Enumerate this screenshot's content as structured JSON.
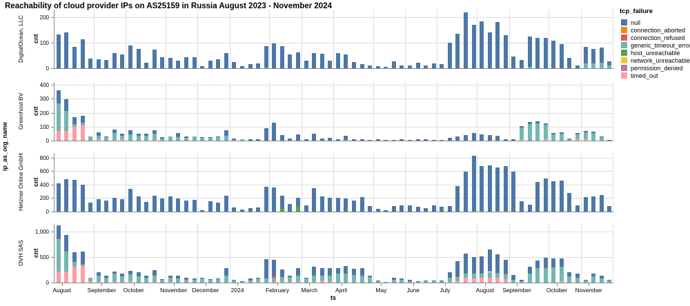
{
  "title": "Reachability of cloud provider IPs on AS25159 in Russia August 2023 - November 2024",
  "legend": {
    "title": "tcp_failure",
    "items": [
      {
        "label": "null",
        "color": "#4c78a8"
      },
      {
        "label": "connection_aborted",
        "color": "#f58518"
      },
      {
        "label": "connection_refused",
        "color": "#e45756"
      },
      {
        "label": "generic_timeout_error",
        "color": "#72b7b2"
      },
      {
        "label": "host_unreachable",
        "color": "#54a24b"
      },
      {
        "label": "network_unreachable",
        "color": "#eeca3b"
      },
      {
        "label": "permission_denied",
        "color": "#b279a2"
      },
      {
        "label": "timed_out",
        "color": "#ff9da6"
      }
    ]
  },
  "chart_data": {
    "type": "bar",
    "stacked": true,
    "grid": true,
    "time_unit": "week",
    "title": "Reachability of cloud provider IPs on AS25159 in Russia August 2023 - November 2024",
    "xlabel": "ts",
    "ylabel": "cnt",
    "row_title": "ip_as_org_name",
    "legend_position": "right",
    "x_tick_labels": [
      "August",
      "September",
      "October",
      "November",
      "December",
      "2024",
      "February",
      "March",
      "April",
      "May",
      "June",
      "July",
      "August",
      "September",
      "October",
      "November"
    ],
    "bars_per_month": [
      5,
      4,
      5,
      4,
      4,
      5,
      4,
      4,
      5,
      4,
      4,
      5,
      4,
      5,
      4,
      4
    ],
    "stack_order": [
      "timed_out",
      "permission_denied",
      "network_unreachable",
      "host_unreachable",
      "generic_timeout_error",
      "connection_refused",
      "connection_aborted",
      "null"
    ],
    "facets": [
      {
        "name": "DigitalOcean, LLC",
        "ymax": 230,
        "yticks": [
          0,
          100,
          200
        ],
        "series": {
          "null": [
            133,
            142,
            83,
            115,
            38,
            36,
            33,
            60,
            55,
            88,
            75,
            22,
            74,
            42,
            40,
            31,
            43,
            43,
            7,
            31,
            36,
            59,
            25,
            9,
            16,
            20,
            82,
            97,
            86,
            53,
            63,
            29,
            60,
            58,
            30,
            60,
            54,
            25,
            15,
            12,
            8,
            5,
            28,
            12,
            10,
            22,
            12,
            20,
            15,
            100,
            135,
            218,
            170,
            185,
            140,
            180,
            130,
            45,
            32,
            119,
            120,
            118,
            108,
            95,
            40,
            12,
            65,
            57,
            58,
            18
          ],
          "generic_timeout_error": [
            0,
            0,
            0,
            0,
            0,
            0,
            0,
            0,
            0,
            0,
            0,
            0,
            0,
            0,
            0,
            0,
            0,
            0,
            0,
            0,
            0,
            0,
            0,
            0,
            0,
            0,
            4,
            0,
            0,
            0,
            0,
            0,
            0,
            0,
            0,
            0,
            0,
            0,
            0,
            0,
            0,
            0,
            0,
            0,
            0,
            0,
            0,
            0,
            0,
            0,
            0,
            0,
            0,
            0,
            0,
            0,
            0,
            0,
            0,
            6,
            0,
            0,
            0,
            0,
            0,
            0,
            20,
            18,
            22,
            10
          ]
        }
      },
      {
        "name": "Greenhost BV",
        "ymax": 420,
        "yticks": [
          0,
          100,
          200,
          300,
          400
        ],
        "series": {
          "null": [
            95,
            80,
            50,
            50,
            0,
            25,
            2,
            25,
            15,
            30,
            15,
            18,
            25,
            10,
            0,
            25,
            8,
            0,
            3,
            5,
            5,
            37,
            12,
            0,
            8,
            12,
            90,
            130,
            40,
            15,
            45,
            10,
            48,
            15,
            20,
            10,
            30,
            10,
            8,
            5,
            8,
            5,
            5,
            8,
            5,
            8,
            10,
            5,
            5,
            20,
            30,
            42,
            55,
            45,
            40,
            35,
            12,
            10,
            13,
            15,
            15,
            12,
            10,
            10,
            5,
            8,
            10,
            8,
            5,
            2
          ],
          "generic_timeout_error": [
            195,
            145,
            20,
            20,
            30,
            25,
            28,
            48,
            23,
            45,
            35,
            34,
            44,
            15,
            30,
            25,
            20,
            28,
            22,
            20,
            25,
            35,
            3,
            8,
            0,
            0,
            0,
            0,
            0,
            0,
            0,
            0,
            0,
            0,
            0,
            2,
            5,
            0,
            0,
            0,
            0,
            0,
            0,
            0,
            0,
            0,
            0,
            0,
            0,
            0,
            0,
            0,
            0,
            0,
            0,
            0,
            0,
            2,
            90,
            118,
            122,
            105,
            45,
            48,
            10,
            37,
            48,
            55,
            25,
            3
          ],
          "timed_out": [
            70,
            70,
            100,
            110,
            0,
            8,
            0,
            5,
            10,
            0,
            0,
            0,
            5,
            0,
            0,
            0,
            0,
            0,
            0,
            0,
            0,
            0,
            0,
            0,
            0,
            0,
            0,
            0,
            0,
            0,
            0,
            0,
            0,
            0,
            0,
            0,
            0,
            0,
            0,
            0,
            0,
            0,
            0,
            0,
            0,
            0,
            0,
            0,
            0,
            0,
            0,
            0,
            0,
            0,
            0,
            0,
            0,
            0,
            0,
            0,
            0,
            8,
            0,
            0,
            0,
            8,
            10,
            0,
            0,
            0
          ],
          "connection_refused": [
            0,
            0,
            0,
            0,
            0,
            0,
            0,
            0,
            0,
            0,
            0,
            0,
            0,
            0,
            0,
            5,
            0,
            0,
            0,
            0,
            0,
            0,
            0,
            0,
            0,
            0,
            0,
            0,
            0,
            0,
            0,
            0,
            0,
            0,
            0,
            0,
            0,
            0,
            0,
            0,
            0,
            0,
            0,
            0,
            0,
            0,
            0,
            0,
            0,
            0,
            0,
            0,
            0,
            0,
            0,
            0,
            0,
            0,
            0,
            0,
            0,
            0,
            0,
            0,
            0,
            0,
            0,
            0,
            0,
            0
          ],
          "network_unreachable": [
            0,
            0,
            0,
            0,
            0,
            0,
            0,
            0,
            0,
            0,
            0,
            0,
            0,
            0,
            0,
            0,
            0,
            0,
            0,
            0,
            0,
            0,
            0,
            0,
            0,
            0,
            0,
            0,
            0,
            0,
            0,
            0,
            0,
            0,
            0,
            0,
            0,
            0,
            0,
            0,
            0,
            0,
            0,
            0,
            0,
            0,
            0,
            0,
            0,
            0,
            0,
            0,
            0,
            0,
            0,
            0,
            0,
            0,
            3,
            0,
            0,
            0,
            0,
            0,
            0,
            0,
            0,
            0,
            0,
            0
          ]
        }
      },
      {
        "name": "Hetzner Online GmbH",
        "ymax": 870,
        "yticks": [
          0,
          200,
          400,
          600,
          800
        ],
        "series": {
          "null": [
            415,
            475,
            465,
            395,
            130,
            185,
            160,
            205,
            185,
            335,
            230,
            140,
            240,
            195,
            230,
            190,
            165,
            170,
            20,
            150,
            130,
            240,
            60,
            35,
            55,
            65,
            365,
            355,
            200,
            115,
            120,
            95,
            345,
            230,
            205,
            205,
            190,
            160,
            210,
            80,
            40,
            25,
            85,
            95,
            90,
            75,
            55,
            90,
            70,
            80,
            380,
            590,
            820,
            672,
            690,
            652,
            674,
            585,
            155,
            105,
            440,
            490,
            450,
            460,
            280,
            95,
            210,
            230,
            250,
            80
          ],
          "host_unreachable": [
            0,
            0,
            0,
            0,
            0,
            0,
            0,
            0,
            0,
            0,
            0,
            0,
            0,
            0,
            0,
            0,
            0,
            0,
            0,
            0,
            0,
            0,
            0,
            0,
            0,
            0,
            0,
            0,
            40,
            0,
            80,
            0,
            0,
            0,
            0,
            0,
            0,
            0,
            0,
            0,
            0,
            0,
            0,
            0,
            0,
            0,
            0,
            0,
            0,
            0,
            0,
            0,
            4,
            8,
            0,
            8,
            0,
            0,
            0,
            0,
            0,
            0,
            0,
            0,
            0,
            0,
            0,
            0,
            0,
            0
          ],
          "timed_out": [
            0,
            0,
            5,
            5,
            0,
            0,
            0,
            0,
            0,
            0,
            0,
            0,
            0,
            0,
            0,
            0,
            0,
            0,
            0,
            0,
            0,
            0,
            0,
            0,
            0,
            0,
            0,
            0,
            0,
            0,
            0,
            0,
            0,
            0,
            0,
            0,
            0,
            0,
            0,
            0,
            0,
            0,
            0,
            0,
            0,
            0,
            0,
            0,
            0,
            0,
            0,
            0,
            6,
            0,
            0,
            0,
            0,
            5,
            0,
            0,
            0,
            0,
            0,
            0,
            0,
            0,
            0,
            0,
            0,
            0
          ],
          "connection_refused": [
            5,
            5,
            0,
            0,
            0,
            0,
            0,
            0,
            0,
            0,
            0,
            0,
            0,
            0,
            0,
            0,
            0,
            0,
            0,
            0,
            0,
            0,
            0,
            0,
            0,
            0,
            0,
            0,
            0,
            0,
            0,
            0,
            0,
            0,
            0,
            0,
            0,
            0,
            0,
            0,
            0,
            0,
            0,
            0,
            0,
            0,
            0,
            0,
            0,
            0,
            0,
            0,
            0,
            0,
            0,
            0,
            6,
            0,
            0,
            0,
            0,
            0,
            0,
            0,
            0,
            0,
            0,
            0,
            0,
            0
          ]
        }
      },
      {
        "name": "OVH SAS",
        "ymax": 1150,
        "yticks": [
          0,
          500,
          1000
        ],
        "series": {
          "null": [
            250,
            305,
            190,
            240,
            0,
            70,
            40,
            50,
            55,
            75,
            80,
            40,
            100,
            20,
            40,
            55,
            30,
            25,
            5,
            10,
            5,
            150,
            15,
            5,
            35,
            10,
            375,
            320,
            145,
            25,
            150,
            20,
            170,
            140,
            160,
            120,
            150,
            120,
            150,
            20,
            5,
            0,
            40,
            30,
            20,
            10,
            15,
            15,
            10,
            100,
            300,
            400,
            325,
            330,
            440,
            370,
            280,
            90,
            30,
            130,
            150,
            190,
            180,
            160,
            90,
            70,
            20,
            60,
            60,
            20
          ],
          "generic_timeout_error": [
            650,
            400,
            90,
            30,
            70,
            120,
            100,
            150,
            100,
            130,
            120,
            100,
            120,
            50,
            90,
            80,
            60,
            60,
            80,
            60,
            75,
            130,
            40,
            20,
            40,
            60,
            80,
            90,
            100,
            100,
            110,
            80,
            130,
            100,
            120,
            170,
            170,
            150,
            130,
            110,
            35,
            8,
            60,
            50,
            30,
            20,
            30,
            25,
            25,
            90,
            85,
            85,
            95,
            90,
            110,
            100,
            90,
            60,
            30,
            180,
            280,
            290,
            300,
            280,
            120,
            100,
            40,
            120,
            80,
            40
          ],
          "timed_out": [
            210,
            210,
            310,
            330,
            30,
            20,
            0,
            20,
            20,
            30,
            0,
            0,
            20,
            0,
            10,
            0,
            0,
            0,
            0,
            0,
            0,
            0,
            0,
            0,
            0,
            20,
            0,
            10,
            15,
            10,
            20,
            0,
            10,
            40,
            10,
            0,
            0,
            0,
            0,
            0,
            0,
            0,
            0,
            0,
            0,
            0,
            0,
            0,
            0,
            10,
            25,
            90,
            80,
            90,
            100,
            90,
            70,
            0,
            0,
            0,
            0,
            0,
            0,
            30,
            0,
            0,
            0,
            0,
            0,
            0
          ],
          "connection_refused": [
            10,
            15,
            0,
            10,
            0,
            0,
            0,
            0,
            0,
            0,
            0,
            0,
            0,
            0,
            0,
            0,
            10,
            0,
            0,
            0,
            0,
            0,
            0,
            0,
            0,
            0,
            0,
            30,
            0,
            0,
            0,
            0,
            0,
            0,
            0,
            0,
            0,
            0,
            0,
            0,
            0,
            0,
            0,
            0,
            0,
            0,
            0,
            0,
            0,
            0,
            10,
            0,
            0,
            0,
            0,
            0,
            10,
            0,
            0,
            0,
            0,
            10,
            0,
            0,
            0,
            0,
            0,
            0,
            0,
            0
          ]
        }
      }
    ]
  }
}
